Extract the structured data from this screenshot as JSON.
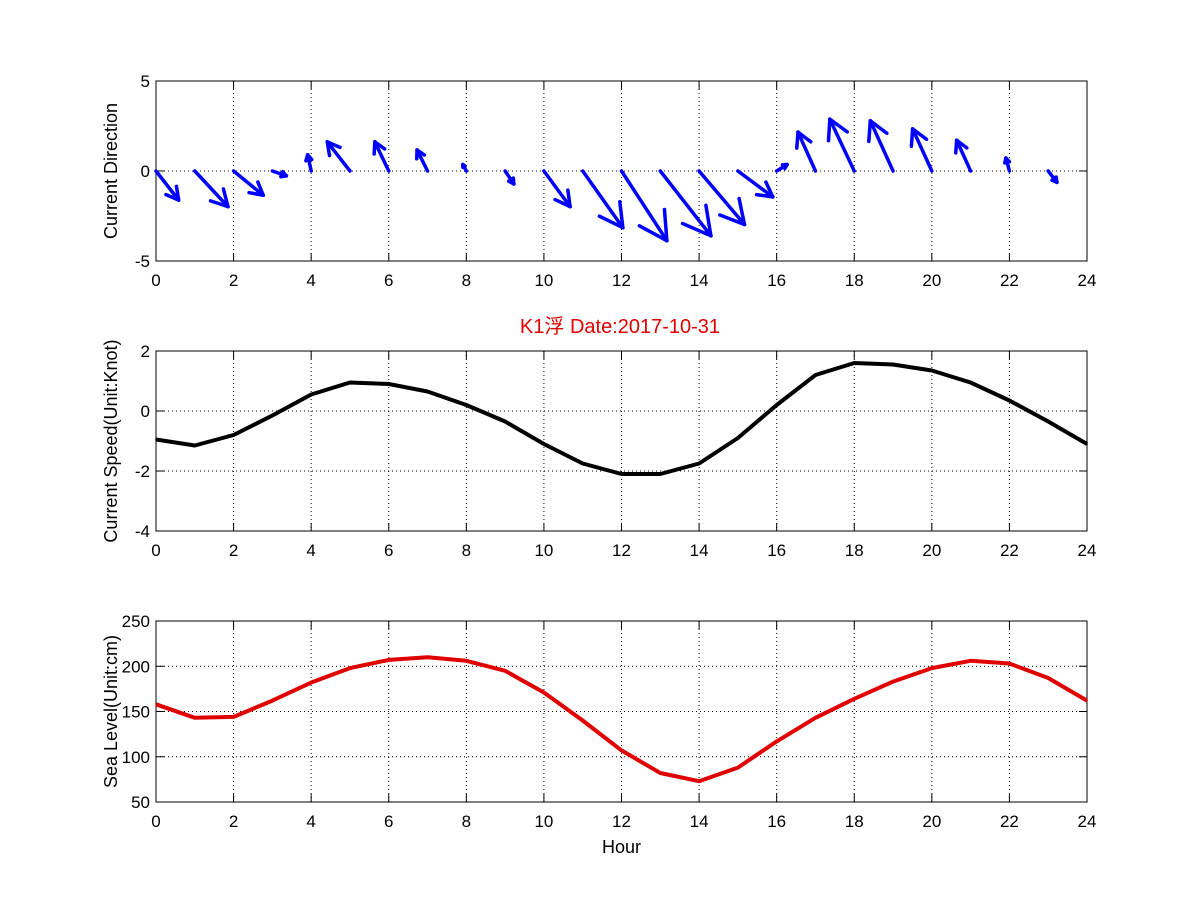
{
  "figure": {
    "title": "K1浮   Date:2017-10-31",
    "title_color": "#e00000"
  },
  "chart_data": [
    {
      "type": "quiver",
      "ylabel": "Current Direction",
      "xlabel": "",
      "xlim": [
        0,
        24
      ],
      "ylim": [
        -5,
        5
      ],
      "xticks": [
        0,
        2,
        4,
        6,
        8,
        10,
        12,
        14,
        16,
        18,
        20,
        22,
        24
      ],
      "yticks": [
        -5,
        0,
        5
      ],
      "grid": true,
      "color": "#0000ff",
      "x": [
        0,
        1,
        2,
        3,
        4,
        5,
        6,
        7,
        8,
        9,
        10,
        11,
        12,
        13,
        14,
        15,
        16,
        17,
        18,
        19,
        20,
        21,
        22,
        23
      ],
      "u": [
        0.65,
        0.95,
        0.85,
        0.4,
        -0.1,
        -0.65,
        -0.4,
        -0.3,
        -0.1,
        0.25,
        0.75,
        1.15,
        1.3,
        1.45,
        1.3,
        1.0,
        0.3,
        -0.5,
        -0.7,
        -0.65,
        -0.55,
        -0.4,
        -0.1,
        0.25
      ],
      "v": [
        -1.8,
        -2.2,
        -1.5,
        -0.3,
        1.0,
        1.8,
        1.8,
        1.3,
        0.4,
        -0.8,
        -2.2,
        -3.5,
        -4.3,
        -4.0,
        -3.3,
        -1.6,
        0.4,
        2.4,
        3.2,
        3.1,
        2.6,
        1.9,
        0.8,
        -0.7
      ]
    },
    {
      "type": "line",
      "ylabel": "Current Speed(Unit:Knot)",
      "xlabel": "",
      "xlim": [
        0,
        24
      ],
      "ylim": [
        -4,
        2
      ],
      "xticks": [
        0,
        2,
        4,
        6,
        8,
        10,
        12,
        14,
        16,
        18,
        20,
        22,
        24
      ],
      "yticks": [
        -4,
        -2,
        0,
        2
      ],
      "grid": true,
      "color": "#000000",
      "x": [
        0,
        1,
        2,
        3,
        4,
        5,
        6,
        7,
        8,
        9,
        10,
        11,
        12,
        13,
        14,
        15,
        16,
        17,
        18,
        19,
        20,
        21,
        22,
        23,
        24
      ],
      "y": [
        -0.95,
        -1.15,
        -0.8,
        -0.15,
        0.55,
        0.95,
        0.9,
        0.65,
        0.2,
        -0.35,
        -1.1,
        -1.75,
        -2.1,
        -2.1,
        -1.75,
        -0.9,
        0.2,
        1.2,
        1.6,
        1.55,
        1.35,
        0.95,
        0.35,
        -0.35,
        -1.1
      ]
    },
    {
      "type": "line",
      "ylabel": "Sea Level(Unit:cm)",
      "xlabel": "Hour",
      "xlim": [
        0,
        24
      ],
      "ylim": [
        50,
        250
      ],
      "xticks": [
        0,
        2,
        4,
        6,
        8,
        10,
        12,
        14,
        16,
        18,
        20,
        22,
        24
      ],
      "yticks": [
        50,
        100,
        150,
        200,
        250
      ],
      "grid": true,
      "color": "#e00000",
      "x": [
        0,
        1,
        2,
        3,
        4,
        5,
        6,
        7,
        8,
        9,
        10,
        11,
        12,
        13,
        14,
        15,
        16,
        17,
        18,
        19,
        20,
        21,
        22,
        23,
        24
      ],
      "y": [
        158,
        143,
        144,
        162,
        182,
        198,
        207,
        210,
        206,
        195,
        171,
        140,
        107,
        82,
        73,
        88,
        117,
        143,
        164,
        183,
        198,
        206,
        203,
        187,
        162
      ]
    }
  ]
}
